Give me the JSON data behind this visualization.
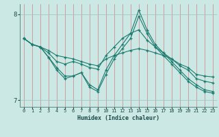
{
  "xlabel": "Humidex (Indice chaleur)",
  "background_color": "#cce8e4",
  "line_color": "#1a7a6e",
  "grid_color_v": "#d08080",
  "grid_color_h": "#9ec8c4",
  "xlim": [
    -0.5,
    23.5
  ],
  "ylim": [
    6.92,
    8.12
  ],
  "yticks": [
    7,
    8
  ],
  "xticks": [
    0,
    1,
    2,
    3,
    4,
    5,
    6,
    7,
    8,
    9,
    10,
    11,
    12,
    13,
    14,
    15,
    16,
    17,
    18,
    19,
    20,
    21,
    22,
    23
  ],
  "series": [
    {
      "x": [
        0,
        1,
        2,
        3,
        4,
        5,
        6,
        7,
        8,
        9,
        10,
        11,
        12,
        13,
        14,
        15,
        16,
        17,
        18,
        19,
        20,
        21,
        22,
        23
      ],
      "y": [
        7.72,
        7.65,
        7.62,
        7.58,
        7.52,
        7.5,
        7.48,
        7.45,
        7.42,
        7.4,
        7.48,
        7.52,
        7.55,
        7.58,
        7.6,
        7.58,
        7.55,
        7.52,
        7.48,
        7.42,
        7.38,
        7.3,
        7.28,
        7.27
      ]
    },
    {
      "x": [
        0,
        1,
        2,
        3,
        4,
        5,
        6,
        7,
        8,
        9,
        10,
        11,
        12,
        13,
        14,
        15,
        16,
        17,
        18,
        19,
        20,
        21,
        22,
        23
      ],
      "y": [
        7.72,
        7.65,
        7.62,
        7.55,
        7.45,
        7.42,
        7.45,
        7.42,
        7.38,
        7.36,
        7.52,
        7.62,
        7.72,
        7.78,
        7.82,
        7.7,
        7.62,
        7.55,
        7.48,
        7.4,
        7.35,
        7.25,
        7.22,
        7.2
      ]
    },
    {
      "x": [
        0,
        1,
        2,
        3,
        4,
        5,
        6,
        7,
        8,
        9,
        10,
        11,
        12,
        13,
        14,
        15,
        16,
        17,
        18,
        19,
        20,
        21,
        22,
        23
      ],
      "y": [
        7.72,
        7.65,
        7.62,
        7.5,
        7.35,
        7.25,
        7.28,
        7.32,
        7.15,
        7.1,
        7.3,
        7.48,
        7.6,
        7.72,
        7.98,
        7.78,
        7.62,
        7.52,
        7.42,
        7.32,
        7.22,
        7.15,
        7.1,
        7.08
      ]
    },
    {
      "x": [
        0,
        1,
        2,
        3,
        4,
        5,
        6,
        7,
        8,
        9,
        10,
        11,
        12,
        13,
        14,
        15,
        16,
        17,
        18,
        19,
        20,
        21,
        22,
        23
      ],
      "y": [
        7.72,
        7.65,
        7.62,
        7.5,
        7.38,
        7.28,
        7.28,
        7.32,
        7.18,
        7.12,
        7.35,
        7.52,
        7.65,
        7.78,
        8.05,
        7.82,
        7.65,
        7.55,
        7.45,
        7.35,
        7.25,
        7.18,
        7.12,
        7.1
      ]
    }
  ]
}
